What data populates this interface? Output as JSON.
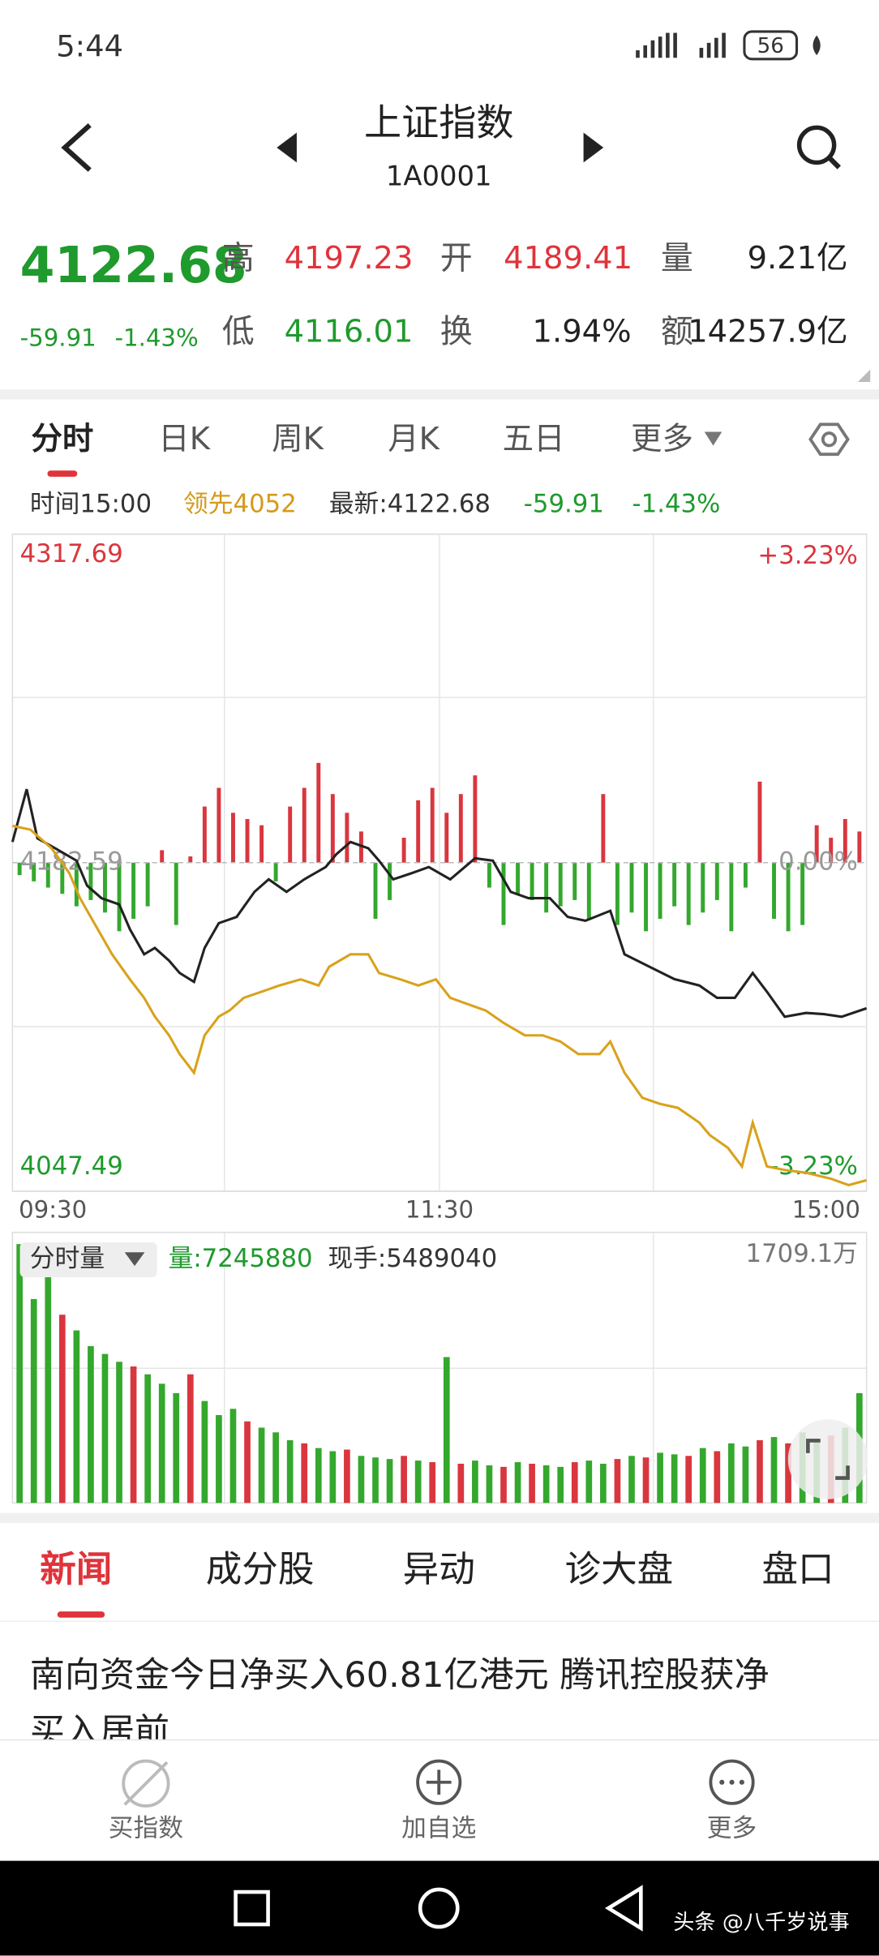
{
  "status": {
    "time": "5:44",
    "battery": "56"
  },
  "header": {
    "title": "上证指数",
    "code": "1A0001"
  },
  "quote": {
    "price": "4122.68",
    "change": "-59.91",
    "change_pct": "-1.43%",
    "high_label": "高",
    "high": "4197.23",
    "open_label": "开",
    "open": "4189.41",
    "vol_label": "量",
    "vol": "9.21亿",
    "low_label": "低",
    "low": "4116.01",
    "turn_label": "换",
    "turn": "1.94%",
    "amt_label": "额",
    "amt": "14257.9亿"
  },
  "tabs": [
    "分时",
    "日K",
    "周K",
    "月K",
    "五日",
    "更多"
  ],
  "info": {
    "time": "时间15:00",
    "lead": "领先4052",
    "latest": "最新:4122.68",
    "change": "-59.91",
    "pct": "-1.43%"
  },
  "chart_data": [
    {
      "type": "line",
      "xlim": [
        0,
        240
      ],
      "xticks": [
        {
          "value": 0,
          "label": "09:30"
        },
        {
          "value": 120,
          "label": "11:30"
        },
        {
          "value": 240,
          "label": "15:00"
        }
      ],
      "ylim": [
        4047.49,
        4317.69
      ],
      "yticks": [
        4047.49,
        4182.59,
        4317.69
      ],
      "y2lim": [
        -3.23,
        3.23
      ],
      "y2ticks": [
        {
          "value": -3.23,
          "label": "-3.23%"
        },
        {
          "value": 0,
          "label": "0.00%"
        },
        {
          "value": 3.23,
          "label": "+3.23%"
        }
      ],
      "series": [
        {
          "color": "#222222",
          "x": [
            0,
            4,
            7,
            12,
            18,
            21,
            25,
            30,
            33,
            37,
            40,
            44,
            47,
            51,
            54,
            58,
            63,
            68,
            72,
            77,
            82,
            88,
            91,
            95,
            100,
            103,
            107,
            112,
            117,
            123,
            130,
            135,
            140,
            145,
            151,
            156,
            161,
            168,
            172,
            179,
            186,
            193,
            198,
            203,
            208,
            212,
            217,
            223,
            228,
            233,
            240
          ],
          "values": [
            4191.1,
            4212.8,
            4192.6,
            4188.5,
            4183.4,
            4173.1,
            4168.0,
            4165.4,
            4155.2,
            4144.9,
            4147.5,
            4142.3,
            4137.2,
            4133.6,
            4147.5,
            4157.7,
            4160.3,
            4170.6,
            4175.7,
            4170.6,
            4175.7,
            4180.8,
            4186.0,
            4191.1,
            4188.5,
            4183.4,
            4175.7,
            4178.2,
            4180.8,
            4175.7,
            4184.4,
            4183.4,
            4170.6,
            4168.0,
            4168.0,
            4160.3,
            4158.7,
            4162.8,
            4144.9,
            4139.8,
            4134.7,
            4132.1,
            4127.0,
            4127.0,
            4137.2,
            4129.5,
            4119.2,
            4120.8,
            4120.3,
            4119.2,
            4122.68
          ]
        },
        {
          "color": "#d9a21c",
          "x": [
            0,
            5,
            11,
            16,
            19,
            23,
            28,
            33,
            37,
            40,
            44,
            47,
            51,
            54,
            58,
            61,
            65,
            70,
            75,
            81,
            86,
            89,
            95,
            100,
            103,
            109,
            114,
            119,
            123,
            128,
            133,
            138,
            144,
            149,
            154,
            159,
            165,
            168,
            172,
            177,
            182,
            187,
            193,
            196,
            201,
            205,
            208,
            212,
            217,
            223,
            230,
            235,
            240
          ],
          "values": [
            4197.7,
            4196.2,
            4188.5,
            4178.2,
            4168.0,
            4157.7,
            4144.9,
            4134.6,
            4127.0,
            4119.3,
            4111.6,
            4103.9,
            4096.2,
            4111.6,
            4119.3,
            4121.8,
            4127.0,
            4129.5,
            4132.1,
            4134.6,
            4132.1,
            4139.8,
            4144.9,
            4144.9,
            4137.2,
            4134.6,
            4132.1,
            4134.6,
            4127.0,
            4124.4,
            4121.8,
            4116.7,
            4111.6,
            4111.6,
            4109.0,
            4103.9,
            4103.9,
            4109.0,
            4096.2,
            4085.9,
            4083.4,
            4081.8,
            4075.7,
            4070.5,
            4065.4,
            4057.7,
            4075.7,
            4057.7,
            4056.2,
            4055.1,
            4052.6,
            4050.0,
            4052
          ]
        }
      ],
      "bars": {
        "up_color": "#d9363e",
        "down_color": "#34a82d",
        "x": [
          2,
          6,
          10,
          14,
          18,
          22,
          26,
          30,
          34,
          38,
          42,
          46,
          50,
          54,
          58,
          62,
          66,
          70,
          74,
          78,
          82,
          86,
          90,
          94,
          98,
          102,
          106,
          110,
          114,
          118,
          122,
          126,
          130,
          134,
          138,
          142,
          146,
          150,
          154,
          158,
          162,
          166,
          170,
          174,
          178,
          182,
          186,
          190,
          194,
          198,
          202,
          206,
          210,
          214,
          218,
          222,
          226,
          230,
          234,
          238
        ],
        "values": [
          -10,
          -15,
          -20,
          -25,
          -35,
          -30,
          -40,
          -55,
          -45,
          -35,
          10,
          -50,
          5,
          45,
          60,
          40,
          35,
          30,
          -15,
          45,
          60,
          80,
          55,
          40,
          25,
          -45,
          -30,
          20,
          50,
          60,
          40,
          55,
          70,
          -20,
          -50,
          -25,
          -30,
          -40,
          -35,
          -30,
          -45,
          55,
          -50,
          -40,
          -55,
          -45,
          -35,
          -50,
          -40,
          -30,
          -55,
          -20,
          65,
          -45,
          -55,
          -50,
          30,
          20,
          35,
          25
        ]
      }
    },
    {
      "type": "bar",
      "xlim": [
        0,
        240
      ],
      "ylim": [
        0,
        1709.1
      ],
      "yticks": [
        {
          "value": 1709.1,
          "label": "1709.1万"
        }
      ],
      "x": [
        2,
        6,
        10,
        14,
        18,
        22,
        26,
        30,
        34,
        38,
        42,
        46,
        50,
        54,
        58,
        62,
        66,
        70,
        74,
        78,
        82,
        86,
        90,
        94,
        98,
        102,
        106,
        110,
        114,
        118,
        122,
        126,
        130,
        134,
        138,
        142,
        146,
        150,
        154,
        158,
        162,
        166,
        170,
        174,
        178,
        182,
        186,
        190,
        194,
        198,
        202,
        206,
        210,
        214,
        218,
        222,
        226,
        230,
        234,
        238
      ],
      "values": [
        1650,
        1300,
        1480,
        1200,
        1100,
        1000,
        950,
        900,
        870,
        820,
        760,
        700,
        820,
        650,
        560,
        600,
        520,
        480,
        450,
        400,
        380,
        350,
        330,
        340,
        300,
        290,
        280,
        300,
        270,
        260,
        930,
        250,
        270,
        240,
        230,
        260,
        250,
        240,
        230,
        260,
        270,
        250,
        280,
        300,
        290,
        320,
        310,
        300,
        350,
        330,
        380,
        360,
        400,
        420,
        380,
        450,
        400,
        430,
        480,
        700
      ],
      "colors": [
        "#34a82d",
        "#34a82d",
        "#34a82d",
        "#d9363e",
        "#34a82d",
        "#34a82d",
        "#34a82d",
        "#34a82d",
        "#d9363e",
        "#34a82d",
        "#34a82d",
        "#34a82d",
        "#d9363e",
        "#34a82d",
        "#34a82d",
        "#34a82d",
        "#d9363e",
        "#34a82d",
        "#34a82d",
        "#34a82d",
        "#d9363e",
        "#34a82d",
        "#34a82d",
        "#d9363e",
        "#34a82d",
        "#34a82d",
        "#34a82d",
        "#d9363e",
        "#34a82d",
        "#d9363e",
        "#34a82d",
        "#d9363e",
        "#34a82d",
        "#34a82d",
        "#d9363e",
        "#34a82d",
        "#d9363e",
        "#34a82d",
        "#34a82d",
        "#d9363e",
        "#34a82d",
        "#34a82d",
        "#d9363e",
        "#34a82d",
        "#d9363e",
        "#34a82d",
        "#34a82d",
        "#d9363e",
        "#34a82d",
        "#d9363e",
        "#34a82d",
        "#34a82d",
        "#d9363e",
        "#34a82d",
        "#d9363e",
        "#34a82d",
        "#34a82d",
        "#d9363e",
        "#34a82d",
        "#34a82d"
      ]
    }
  ],
  "volume_header": {
    "mode": "分时量",
    "total": "量:7245880",
    "last": "现手:5489040"
  },
  "news_tabs": [
    "新闻",
    "成分股",
    "异动",
    "诊大盘",
    "盘口"
  ],
  "headline": [
    "南向资金今日净买入60.81亿港元 腾讯控股获净",
    "买入居前"
  ],
  "bottom_nav": [
    "买指数",
    "加自选",
    "更多"
  ],
  "watermark": "头条 @八千岁说事"
}
